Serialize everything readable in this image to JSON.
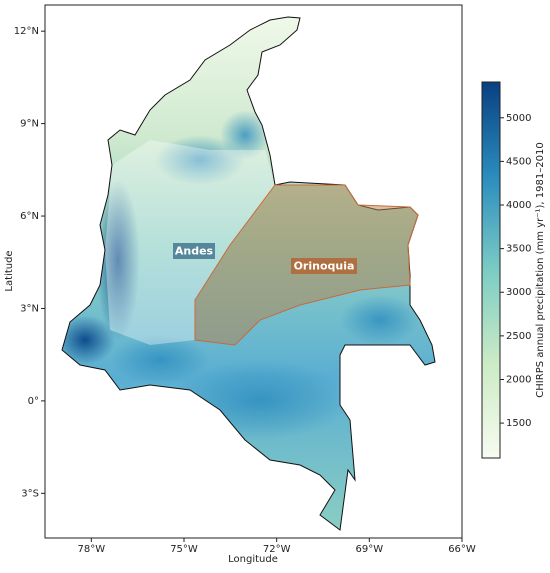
{
  "map": {
    "xlabel": "Longitude",
    "ylabel": "Latitude",
    "xlim": [
      -79.5,
      -66
    ],
    "ylim": [
      -4.45,
      12.85
    ],
    "xticks": [
      {
        "value": -78,
        "label": "78°W"
      },
      {
        "value": -75,
        "label": "75°W"
      },
      {
        "value": -72,
        "label": "72°W"
      },
      {
        "value": -69,
        "label": "69°W"
      },
      {
        "value": -66,
        "label": "66°W"
      }
    ],
    "yticks": [
      {
        "value": -3,
        "label": "3°S"
      },
      {
        "value": 0,
        "label": "0°"
      },
      {
        "value": 3,
        "label": "3°N"
      },
      {
        "value": 6,
        "label": "6°N"
      },
      {
        "value": 9,
        "label": "9°N"
      },
      {
        "value": 12,
        "label": "12°N"
      }
    ],
    "regions": [
      {
        "label": "Andes"
      },
      {
        "label": "Orinoquia"
      }
    ]
  },
  "colorbar": {
    "label": "CHIRPS annual precipitation (mm yr⁻¹), 1981–2010",
    "lim": [
      1100,
      5410
    ],
    "ticks": [
      1500,
      2000,
      2500,
      3000,
      3500,
      4000,
      4500,
      5000
    ]
  }
}
